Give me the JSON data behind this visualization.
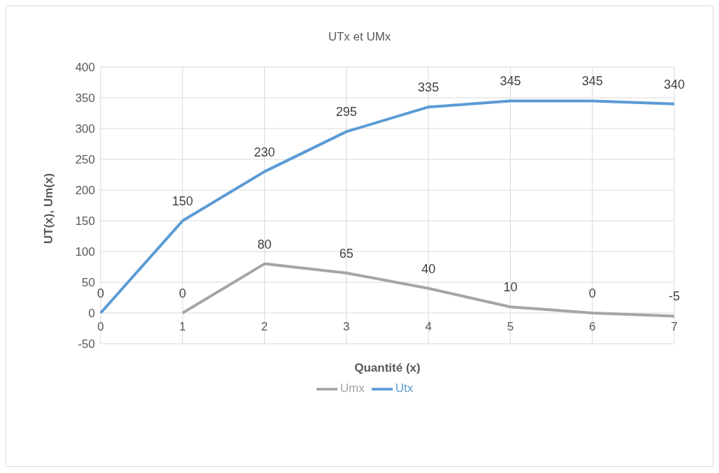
{
  "chart_data": {
    "type": "line",
    "title": "UTx et UMx",
    "xlabel": "Quantité (x)",
    "ylabel": "UT(x), Um(x)",
    "categories": [
      "0",
      "1",
      "2",
      "3",
      "4",
      "5",
      "6",
      "7"
    ],
    "series": [
      {
        "name": "Utx",
        "color": "#5b9bd5",
        "values": [
          0,
          150,
          230,
          295,
          335,
          345,
          345,
          340
        ]
      },
      {
        "name": "Umx",
        "color": "#a5a5a5",
        "values": [
          null,
          0,
          80,
          65,
          40,
          10,
          0,
          -5
        ]
      }
    ],
    "ylim": [
      -50,
      400
    ],
    "yticks": [
      -50,
      0,
      50,
      100,
      150,
      200,
      250,
      300,
      350,
      400
    ],
    "grid": true,
    "legend": "bottom",
    "marker": "none",
    "line_style": "solid",
    "data_labels": true
  }
}
